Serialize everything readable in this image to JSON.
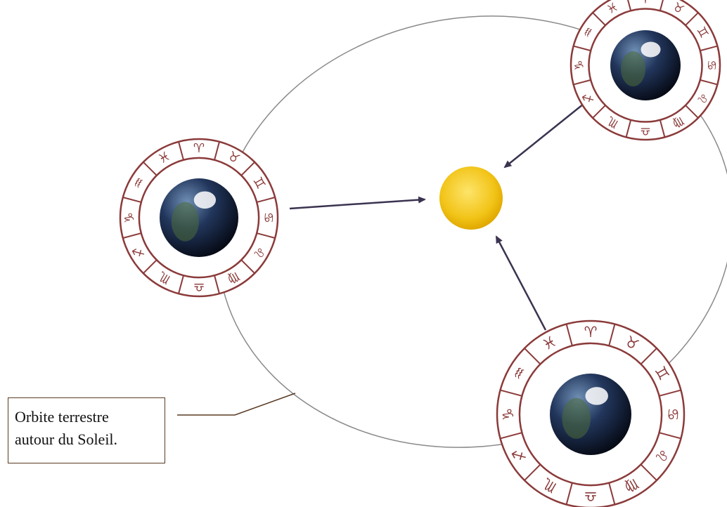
{
  "callout": {
    "line1": "Orbite terrestre",
    "line2": "autour du Soleil."
  },
  "colors": {
    "orbit": "#8a8a8a",
    "sun": "#f2c418",
    "sun_edge": "#e0a800",
    "arrow": "#3b3350",
    "zodiac_ring": "#8b3a3a",
    "callout_border": "#5a3a22"
  },
  "zodiac_signs": [
    "♉",
    "♊",
    "♋",
    "♌",
    "♍",
    "♎",
    "♏",
    "♐",
    "♑",
    "♒",
    "♓",
    "♈"
  ],
  "zodiac_glyphs": [
    "♉",
    "♊",
    "♋",
    "♌",
    "♍",
    "♎",
    "♏",
    "♐",
    "♑",
    "♒",
    "♓",
    "♈"
  ],
  "icons": {
    "sun": "sun-icon",
    "earth": "earth-icon",
    "zodiac": "zodiac-ring-icon"
  }
}
